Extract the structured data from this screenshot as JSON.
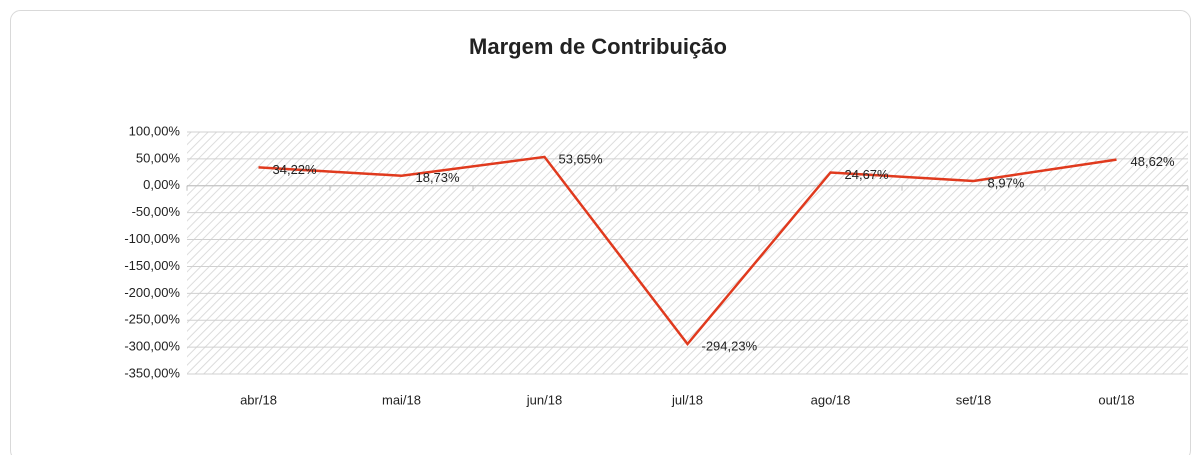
{
  "chart_data": {
    "type": "line",
    "title": "Margem de Contribuição",
    "categories": [
      "abr/18",
      "mai/18",
      "jun/18",
      "jul/18",
      "ago/18",
      "set/18",
      "out/18"
    ],
    "series": [
      {
        "name": "Margem de Contribuição",
        "color": "#e03a1e",
        "values": [
          34.22,
          18.73,
          53.65,
          -294.23,
          24.67,
          8.97,
          48.62
        ],
        "value_labels": [
          "34,22%",
          "18,73%",
          "53,65%",
          "-294,23%",
          "24,67%",
          "8,97%",
          "48,62%"
        ]
      }
    ],
    "ylim": [
      -350,
      100
    ],
    "yticks": [
      {
        "value": 100,
        "label": "100,00%"
      },
      {
        "value": 50,
        "label": "50,00%"
      },
      {
        "value": 0,
        "label": "0,00%"
      },
      {
        "value": -50,
        "label": "-50,00%"
      },
      {
        "value": -100,
        "label": "-100,00%"
      },
      {
        "value": -150,
        "label": "-150,00%"
      },
      {
        "value": -200,
        "label": "-200,00%"
      },
      {
        "value": -250,
        "label": "-250,00%"
      },
      {
        "value": -300,
        "label": "-300,00%"
      },
      {
        "value": -350,
        "label": "-350,00%"
      }
    ],
    "grid": true
  }
}
